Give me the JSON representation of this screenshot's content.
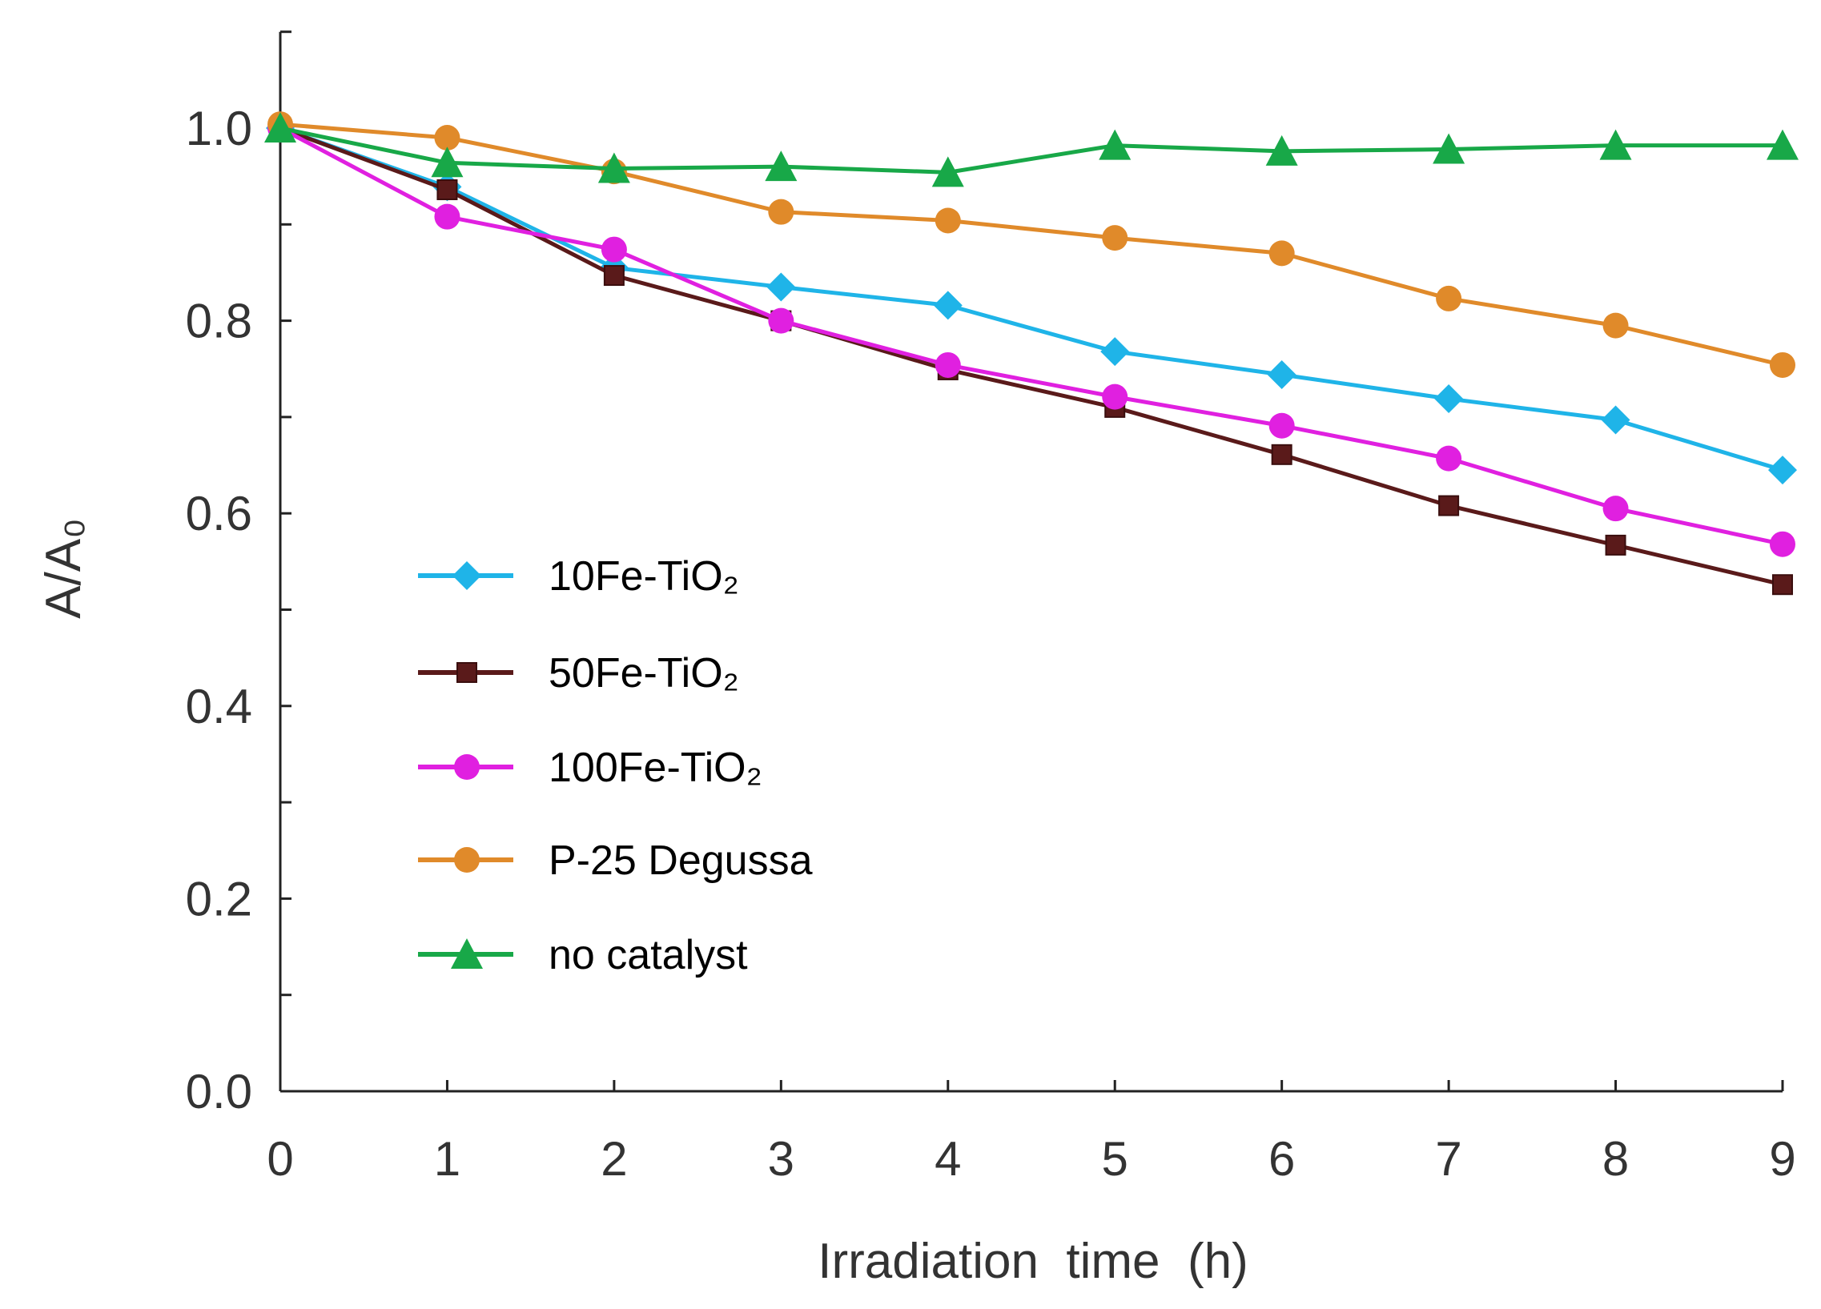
{
  "chart_data": {
    "type": "line",
    "title": "",
    "xlabel": "Irradiation  time  (h)",
    "ylabel": "A/A₀",
    "xlim": [
      0,
      9
    ],
    "ylim": [
      0,
      1.1
    ],
    "x": [
      0,
      1,
      2,
      3,
      4,
      5,
      6,
      7,
      8,
      9
    ],
    "xticks": [
      "0",
      "1",
      "2",
      "3",
      "4",
      "5",
      "6",
      "7",
      "8",
      "9"
    ],
    "yticks": [
      "0.0",
      "0.2",
      "0.4",
      "0.6",
      "0.8",
      "1.0"
    ],
    "grid": false,
    "legend_position": "center-left",
    "series": [
      {
        "name": "10Fe-TiO₂",
        "color": "#1fb4e8",
        "marker": "diamond",
        "values": [
          1.0,
          0.939,
          0.855,
          0.835,
          0.816,
          0.768,
          0.744,
          0.719,
          0.697,
          0.645
        ]
      },
      {
        "name": "50Fe-TiO₂",
        "color": "#5a1a1a",
        "marker": "square",
        "values": [
          1.0,
          0.936,
          0.847,
          0.8,
          0.749,
          0.71,
          0.661,
          0.608,
          0.567,
          0.526
        ]
      },
      {
        "name": "100Fe-TiO₂",
        "color": "#e020e0",
        "marker": "circle",
        "values": [
          1.0,
          0.908,
          0.874,
          0.8,
          0.754,
          0.721,
          0.691,
          0.657,
          0.605,
          0.568
        ]
      },
      {
        "name": "P-25 Degussa",
        "color": "#e08a2a",
        "marker": "circle",
        "values": [
          1.004,
          0.99,
          0.955,
          0.913,
          0.904,
          0.886,
          0.87,
          0.823,
          0.795,
          0.754
        ]
      },
      {
        "name": "no catalyst",
        "color": "#18a848",
        "marker": "triangle",
        "values": [
          1.0,
          0.964,
          0.958,
          0.96,
          0.954,
          0.982,
          0.976,
          0.978,
          0.982,
          0.982
        ]
      }
    ]
  }
}
